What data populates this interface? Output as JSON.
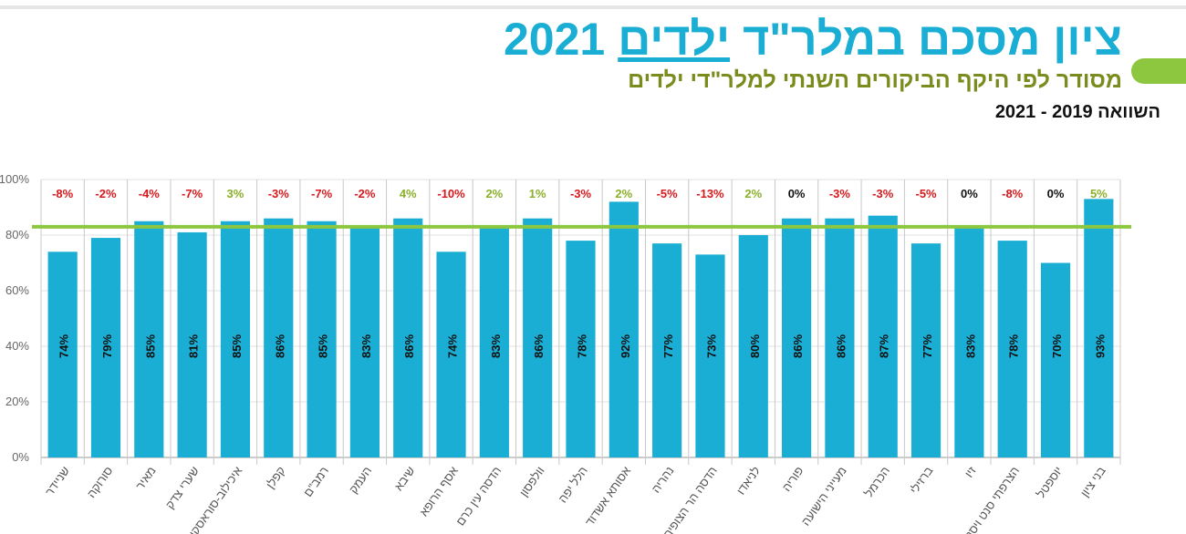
{
  "chart_data": {
    "type": "bar",
    "title_parts": [
      "ציון מסכם במלר\"ד",
      "ילדים",
      "2021"
    ],
    "subtitle": "מסודר לפי היקף הביקורים השנתי למלר\"די ילדים",
    "comparison": "השוואה  2019 - 2021",
    "categories": [
      "שניידר",
      "סורוקה",
      "מאיר",
      "שערי צדק",
      "איכילוב-סוראסקי",
      "קפלן",
      "רמב\"ם",
      "העמק",
      "שיבא",
      "אסף הרופא",
      "הדסה עין כרם",
      "וולפסון",
      "הלל יפה",
      "אסותא אשדוד",
      "נהריה",
      "הדסה הר הצופים",
      "לניאדו",
      "פוריה",
      "מעייני הישועה",
      "הכרמל",
      "ברזילי",
      "זיו",
      "הצרפתי סנט ויסנט",
      "יוספטל",
      "בני ציון"
    ],
    "values": [
      74,
      79,
      85,
      81,
      85,
      86,
      85,
      83,
      86,
      74,
      83,
      86,
      78,
      92,
      77,
      73,
      80,
      86,
      86,
      87,
      77,
      83,
      78,
      70,
      93
    ],
    "value_labels": [
      "74%",
      "79%",
      "85%",
      "81%",
      "85%",
      "86%",
      "85%",
      "83%",
      "86%",
      "74%",
      "83%",
      "86%",
      "78%",
      "92%",
      "77%",
      "73%",
      "80%",
      "86%",
      "86%",
      "87%",
      "77%",
      "83%",
      "78%",
      "70%",
      "93%"
    ],
    "color": "#1aaed4",
    "changes": [
      -8,
      -2,
      -4,
      -7,
      3,
      -3,
      -7,
      -2,
      4,
      -10,
      2,
      1,
      -3,
      2,
      -5,
      -13,
      2,
      0,
      -3,
      -3,
      -5,
      0,
      -8,
      0,
      5
    ],
    "change_labels": [
      "-8%",
      "-2%",
      "-4%",
      "-7%",
      "3%",
      "-3%",
      "-7%",
      "-2%",
      "4%",
      "-10%",
      "2%",
      "1%",
      "-3%",
      "2%",
      "-5%",
      "-13%",
      "2%",
      "0%",
      "-3%",
      "-3%",
      "-5%",
      "0%",
      "-8%",
      "0%",
      "5%"
    ],
    "average_line": 83,
    "average_color": "#8dc63f",
    "ylim": [
      0,
      100
    ],
    "yticks": [
      {
        "value": 0,
        "label": "0%"
      },
      {
        "value": 20,
        "label": "20%"
      },
      {
        "value": 40,
        "label": "40%"
      },
      {
        "value": 60,
        "label": "60%"
      },
      {
        "value": 80,
        "label": "80%"
      },
      {
        "value": 100,
        "label": "100%"
      }
    ],
    "grid": true
  }
}
